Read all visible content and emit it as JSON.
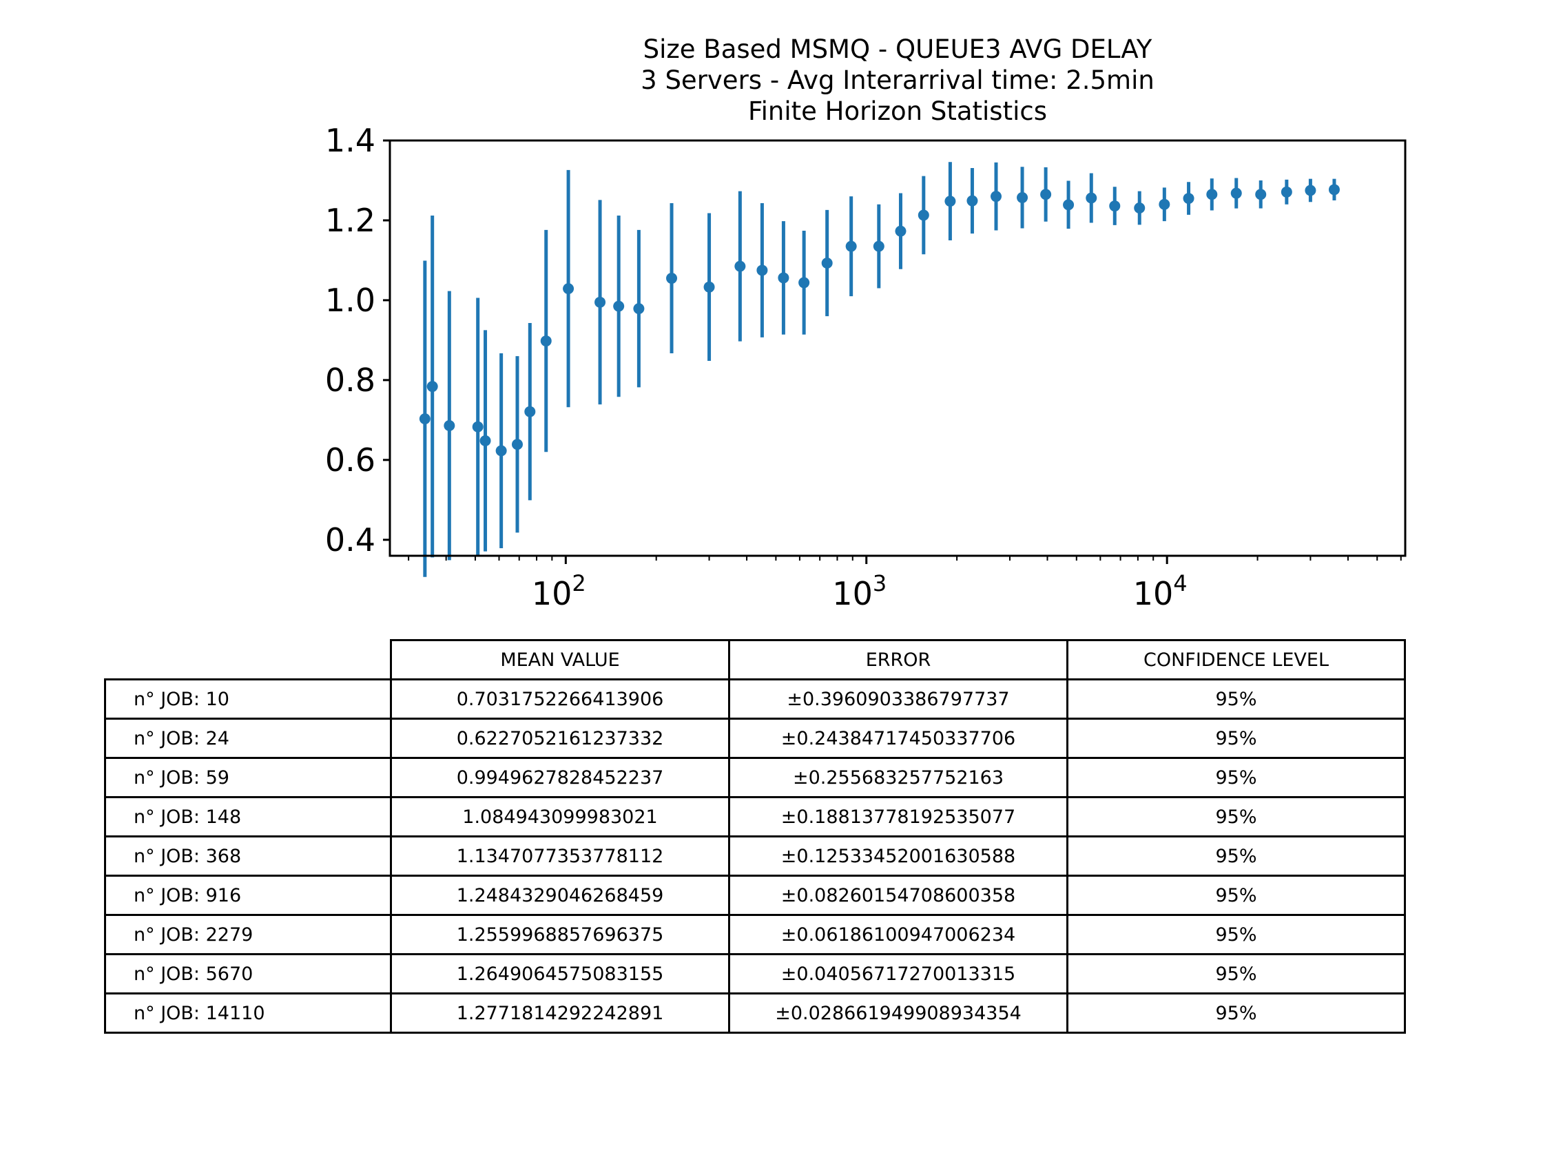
{
  "chart_data": {
    "type": "scatter",
    "subtype": "errorbar",
    "title": [
      "Size Based MSMQ - QUEUE3 AVG DELAY",
      "3 Servers -  Avg Interarrival time: 2.5min",
      "Finite Horizon Statistics"
    ],
    "xscale": "log",
    "xlim": [
      26,
      62000
    ],
    "ylim": [
      0.36,
      1.4
    ],
    "yticks": [
      0.4,
      0.6,
      0.8,
      1.0,
      1.2,
      1.4
    ],
    "ytick_labels": [
      "0.4",
      "0.6",
      "0.8",
      "1.0",
      "1.2",
      "1.4"
    ],
    "xticks": [
      100,
      1000,
      10000
    ],
    "xtick_base": "10",
    "xtick_exponents": [
      "2",
      "3",
      "4"
    ],
    "color": "#1f77b4",
    "points": [
      {
        "x": 34,
        "y": 0.703,
        "err": 0.396
      },
      {
        "x": 36,
        "y": 0.784,
        "err": 0.428
      },
      {
        "x": 41,
        "y": 0.686,
        "err": 0.337
      },
      {
        "x": 51,
        "y": 0.683,
        "err": 0.323
      },
      {
        "x": 54,
        "y": 0.648,
        "err": 0.277
      },
      {
        "x": 61,
        "y": 0.623,
        "err": 0.244
      },
      {
        "x": 69,
        "y": 0.639,
        "err": 0.221
      },
      {
        "x": 76,
        "y": 0.721,
        "err": 0.222
      },
      {
        "x": 86,
        "y": 0.898,
        "err": 0.278
      },
      {
        "x": 102,
        "y": 1.029,
        "err": 0.297
      },
      {
        "x": 130,
        "y": 0.995,
        "err": 0.256
      },
      {
        "x": 150,
        "y": 0.985,
        "err": 0.227
      },
      {
        "x": 175,
        "y": 0.979,
        "err": 0.197
      },
      {
        "x": 225,
        "y": 1.055,
        "err": 0.188
      },
      {
        "x": 300,
        "y": 1.033,
        "err": 0.185
      },
      {
        "x": 380,
        "y": 1.085,
        "err": 0.188
      },
      {
        "x": 450,
        "y": 1.075,
        "err": 0.168
      },
      {
        "x": 530,
        "y": 1.056,
        "err": 0.142
      },
      {
        "x": 620,
        "y": 1.044,
        "err": 0.13
      },
      {
        "x": 740,
        "y": 1.093,
        "err": 0.133
      },
      {
        "x": 890,
        "y": 1.135,
        "err": 0.125
      },
      {
        "x": 1100,
        "y": 1.135,
        "err": 0.105
      },
      {
        "x": 1300,
        "y": 1.173,
        "err": 0.095
      },
      {
        "x": 1550,
        "y": 1.213,
        "err": 0.098
      },
      {
        "x": 1900,
        "y": 1.248,
        "err": 0.098
      },
      {
        "x": 2250,
        "y": 1.249,
        "err": 0.082
      },
      {
        "x": 2700,
        "y": 1.26,
        "err": 0.085
      },
      {
        "x": 3300,
        "y": 1.257,
        "err": 0.077
      },
      {
        "x": 3950,
        "y": 1.265,
        "err": 0.068
      },
      {
        "x": 4700,
        "y": 1.239,
        "err": 0.06
      },
      {
        "x": 5600,
        "y": 1.256,
        "err": 0.062
      },
      {
        "x": 6700,
        "y": 1.236,
        "err": 0.048
      },
      {
        "x": 8100,
        "y": 1.231,
        "err": 0.042
      },
      {
        "x": 9800,
        "y": 1.24,
        "err": 0.042
      },
      {
        "x": 11800,
        "y": 1.255,
        "err": 0.041
      },
      {
        "x": 14100,
        "y": 1.265,
        "err": 0.04
      },
      {
        "x": 17000,
        "y": 1.268,
        "err": 0.038
      },
      {
        "x": 20500,
        "y": 1.265,
        "err": 0.035
      },
      {
        "x": 25000,
        "y": 1.271,
        "err": 0.031
      },
      {
        "x": 30000,
        "y": 1.275,
        "err": 0.029
      },
      {
        "x": 36000,
        "y": 1.277,
        "err": 0.027
      }
    ]
  },
  "table": {
    "columns": [
      "MEAN VALUE",
      "ERROR",
      "CONFIDENCE LEVEL"
    ],
    "rows": [
      {
        "label": "n° JOB: 10",
        "mean": "0.7031752266413906",
        "error": "±0.3960903386797737",
        "confidence": "95%"
      },
      {
        "label": "n° JOB: 24",
        "mean": "0.6227052161237332",
        "error": "±0.24384717450337706",
        "confidence": "95%"
      },
      {
        "label": "n° JOB: 59",
        "mean": "0.9949627828452237",
        "error": "±0.255683257752163",
        "confidence": "95%"
      },
      {
        "label": "n° JOB: 148",
        "mean": "1.084943099983021",
        "error": "±0.18813778192535077",
        "confidence": "95%"
      },
      {
        "label": "n° JOB: 368",
        "mean": "1.1347077353778112",
        "error": "±0.12533452001630588",
        "confidence": "95%"
      },
      {
        "label": "n° JOB: 916",
        "mean": "1.2484329046268459",
        "error": "±0.08260154708600358",
        "confidence": "95%"
      },
      {
        "label": "n° JOB: 2279",
        "mean": "1.2559968857696375",
        "error": "±0.06186100947006234",
        "confidence": "95%"
      },
      {
        "label": "n° JOB: 5670",
        "mean": "1.2649064575083155",
        "error": "±0.04056717270013315",
        "confidence": "95%"
      },
      {
        "label": "n° JOB: 14110",
        "mean": "1.2771814292242891",
        "error": "±0.028661949908934354",
        "confidence": "95%"
      }
    ]
  }
}
